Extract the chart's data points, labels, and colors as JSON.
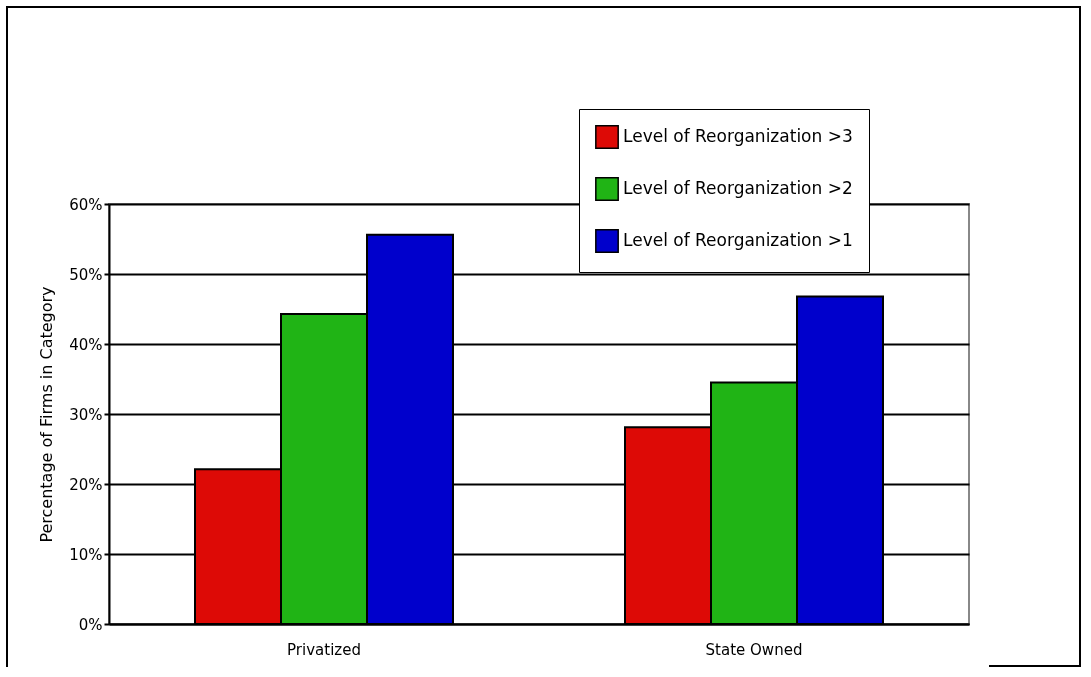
{
  "chart_data": {
    "type": "bar",
    "ylabel": "Percentage of Firms in Category",
    "categories": [
      "Privatized",
      "State Owned"
    ],
    "series": [
      {
        "name": "Level of Reorganization >3",
        "color": "#dd0a06",
        "values": [
          22.1,
          28.1
        ]
      },
      {
        "name": "Level of Reorganization >2",
        "color": "#20b415",
        "values": [
          44.3,
          34.5
        ]
      },
      {
        "name": "Level of Reorganization >1",
        "color": "#0000cc",
        "values": [
          55.6,
          46.8
        ]
      }
    ],
    "ylim": [
      0,
      60
    ],
    "yticks": [
      {
        "value": 0,
        "label": "0%"
      },
      {
        "value": 10,
        "label": "10%"
      },
      {
        "value": 20,
        "label": "20%"
      },
      {
        "value": 30,
        "label": "30%"
      },
      {
        "value": 40,
        "label": "40%"
      },
      {
        "value": 50,
        "label": "50%"
      },
      {
        "value": 60,
        "label": "60%"
      }
    ],
    "grid": "y",
    "legend": "top right"
  }
}
